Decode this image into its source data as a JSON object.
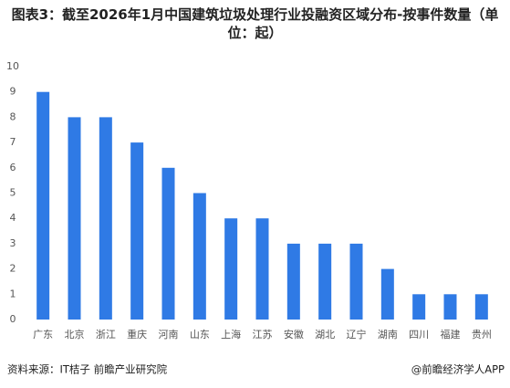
{
  "chart_data": {
    "type": "bar",
    "title": "图表3：截至2026年1月中国建筑垃圾处理行业投融资区域分布-按事件数量（单位：起）",
    "categories": [
      "广东",
      "北京",
      "浙江",
      "重庆",
      "河南",
      "山东",
      "上海",
      "江苏",
      "安徽",
      "湖北",
      "辽宁",
      "湖南",
      "四川",
      "福建",
      "贵州"
    ],
    "values": [
      9,
      8,
      8,
      7,
      6,
      5,
      4,
      4,
      3,
      3,
      3,
      2,
      1,
      1,
      1
    ],
    "color": "#2f7ae5",
    "ylim": [
      0,
      10
    ],
    "yticks": [
      0,
      1,
      2,
      3,
      4,
      5,
      6,
      7,
      8,
      9,
      10
    ],
    "grid": false,
    "source": "资料来源：IT桔子 前瞻产业研究院",
    "credit": "@前瞻经济学人APP"
  }
}
